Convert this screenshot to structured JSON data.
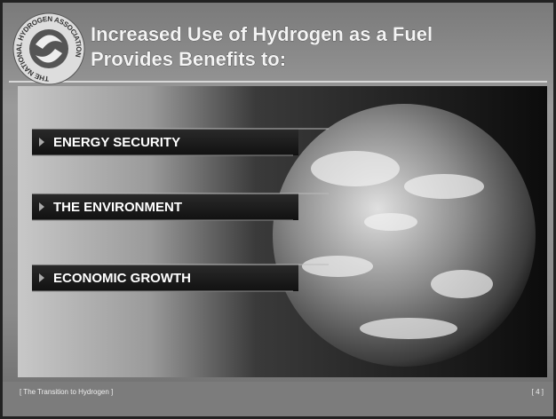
{
  "header": {
    "title_lines": [
      "Increased Use of Hydrogen as a Fuel",
      "Provides Benefits to:"
    ],
    "logo_text": "THE NATIONAL HYDROGEN ASSOCIATION"
  },
  "bullets": [
    "ENERGY SECURITY",
    "THE ENVIRONMENT",
    "ECONOMIC GROWTH"
  ],
  "footer": {
    "left": "[ The Transition to Hydrogen ]",
    "right": "[ 4 ]"
  }
}
